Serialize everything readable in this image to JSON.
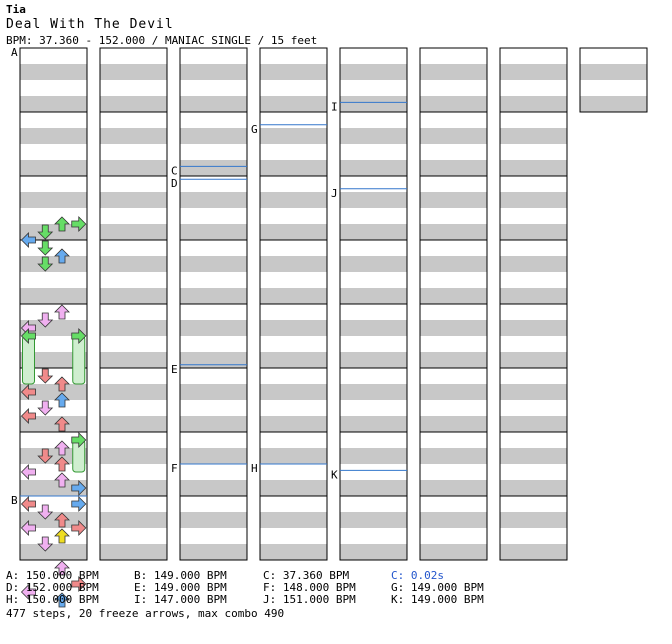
{
  "header": {
    "artist": "Tia",
    "title": "Deal With The Devil",
    "meta": "BPM: 37.360 - 152.000 / MANIAC SINGLE / 15 feet"
  },
  "colors": {
    "red": "#f08a8a",
    "blue": "#66aaee",
    "pink": "#f0b0f0",
    "green": "#66dd66",
    "yellow": "#eedd22",
    "freeze_body": "#cfeecf",
    "stripe": "#c8c8c8",
    "bpm_line": "#3377cc",
    "stop_text": "#2255cc"
  },
  "section_markers": [
    {
      "label": "A",
      "column": 0,
      "measure": 0.0
    },
    {
      "label": "B",
      "column": 0,
      "measure": 7.0
    },
    {
      "label": "C",
      "column": 2,
      "measure": 1.85
    },
    {
      "label": "D",
      "column": 2,
      "measure": 2.05
    },
    {
      "label": "E",
      "column": 2,
      "measure": 4.95
    },
    {
      "label": "F",
      "column": 2,
      "measure": 6.5
    },
    {
      "label": "G",
      "column": 3,
      "measure": 1.2
    },
    {
      "label": "H",
      "column": 3,
      "measure": 6.5
    },
    {
      "label": "I",
      "column": 4,
      "measure": 0.85
    },
    {
      "label": "J",
      "column": 4,
      "measure": 2.2
    },
    {
      "label": "K",
      "column": 4,
      "measure": 6.6
    }
  ],
  "bpm_list": [
    {
      "id": "bpm-a",
      "text": "A: 150.000 BPM",
      "stop": false
    },
    {
      "id": "bpm-b",
      "text": "B: 149.000 BPM",
      "stop": false
    },
    {
      "id": "bpm-c",
      "text": "C: 37.360 BPM",
      "stop": false
    },
    {
      "id": "stop-c",
      "text": "C: 0.02s",
      "stop": true
    },
    {
      "id": "bpm-d",
      "text": "D: 152.000 BPM",
      "stop": false
    },
    {
      "id": "bpm-e",
      "text": "E: 149.000 BPM",
      "stop": false
    },
    {
      "id": "bpm-f",
      "text": "F: 148.000 BPM",
      "stop": false
    },
    {
      "id": "bpm-g",
      "text": "G: 149.000 BPM",
      "stop": false
    },
    {
      "id": "bpm-h",
      "text": "H: 150.000 BPM",
      "stop": false
    },
    {
      "id": "bpm-i",
      "text": "I: 147.000 BPM",
      "stop": false
    },
    {
      "id": "bpm-j",
      "text": "J: 151.000 BPM",
      "stop": false
    },
    {
      "id": "bpm-k",
      "text": "K: 149.000 BPM",
      "stop": false
    }
  ],
  "summary": "477 steps, 20 freeze arrows, max combo 490",
  "chart_data": {
    "type": "step-chart",
    "difficulty": "MANIAC",
    "style": "SINGLE",
    "feet": 15,
    "bpm_range": [
      37.36,
      152.0
    ],
    "steps": 477,
    "freeze_arrows": 20,
    "max_combo": 490,
    "columns": 8,
    "measures_per_column": 8,
    "last_column_measures": 1,
    "lanes": [
      "left",
      "down",
      "up",
      "right"
    ],
    "notes": [
      {
        "col": 0,
        "beat": 11.0,
        "lane": 2,
        "c": "green"
      },
      {
        "col": 0,
        "beat": 11.0,
        "lane": 3,
        "c": "green"
      },
      {
        "col": 0,
        "beat": 11.5,
        "lane": 1,
        "c": "green"
      },
      {
        "col": 0,
        "beat": 12.0,
        "lane": 0,
        "c": "blue"
      },
      {
        "col": 0,
        "beat": 12.5,
        "lane": 1,
        "c": "green"
      },
      {
        "col": 0,
        "beat": 13.0,
        "lane": 2,
        "c": "blue"
      },
      {
        "col": 0,
        "beat": 13.5,
        "lane": 1,
        "c": "green"
      },
      {
        "col": 0,
        "beat": 16.5,
        "lane": 2,
        "c": "pink"
      },
      {
        "col": 0,
        "beat": 17.0,
        "lane": 1,
        "c": "pink"
      },
      {
        "col": 0,
        "beat": 17.5,
        "lane": 0,
        "c": "pink"
      },
      {
        "col": 0,
        "beat": 18.0,
        "lane": 0,
        "c": "green",
        "freeze": 0.75
      },
      {
        "col": 0,
        "beat": 18.0,
        "lane": 3,
        "c": "green",
        "freeze": 0.75
      },
      {
        "col": 0,
        "beat": 20.5,
        "lane": 1,
        "c": "red"
      },
      {
        "col": 0,
        "beat": 21.0,
        "lane": 2,
        "c": "red"
      },
      {
        "col": 0,
        "beat": 21.5,
        "lane": 0,
        "c": "red"
      },
      {
        "col": 0,
        "beat": 22.0,
        "lane": 2,
        "c": "blue"
      },
      {
        "col": 0,
        "beat": 22.5,
        "lane": 1,
        "c": "pink"
      },
      {
        "col": 0,
        "beat": 23.0,
        "lane": 0,
        "c": "red"
      },
      {
        "col": 0,
        "beat": 23.5,
        "lane": 2,
        "c": "red"
      },
      {
        "col": 0,
        "beat": 24.5,
        "lane": 3,
        "c": "green",
        "freeze": 0.5
      },
      {
        "col": 0,
        "beat": 25.0,
        "lane": 2,
        "c": "pink"
      },
      {
        "col": 0,
        "beat": 25.5,
        "lane": 1,
        "c": "red"
      },
      {
        "col": 0,
        "beat": 26.0,
        "lane": 2,
        "c": "red"
      },
      {
        "col": 0,
        "beat": 26.5,
        "lane": 0,
        "c": "pink"
      },
      {
        "col": 0,
        "beat": 27.0,
        "lane": 2,
        "c": "pink"
      },
      {
        "col": 0,
        "beat": 27.5,
        "lane": 3,
        "c": "blue"
      },
      {
        "col": 0,
        "beat": 28.5,
        "lane": 0,
        "c": "red"
      },
      {
        "col": 0,
        "beat": 28.5,
        "lane": 3,
        "c": "blue"
      },
      {
        "col": 0,
        "beat": 29.0,
        "lane": 1,
        "c": "pink"
      },
      {
        "col": 0,
        "beat": 29.5,
        "lane": 2,
        "c": "red"
      },
      {
        "col": 0,
        "beat": 30.0,
        "lane": 0,
        "c": "pink"
      },
      {
        "col": 0,
        "beat": 30.0,
        "lane": 3,
        "c": "red"
      },
      {
        "col": 0,
        "beat": 30.5,
        "lane": 2,
        "c": "yellow"
      },
      {
        "col": 0,
        "beat": 31.0,
        "lane": 1,
        "c": "pink"
      },
      {
        "col": 0,
        "beat": 32.5,
        "lane": 2,
        "c": "pink"
      },
      {
        "col": 0,
        "beat": 33.5,
        "lane": 3,
        "c": "red"
      },
      {
        "col": 0,
        "beat": 34.0,
        "lane": 0,
        "c": "pink"
      },
      {
        "col": 0,
        "beat": 34.5,
        "lane": 2,
        "c": "blue"
      }
    ]
  }
}
